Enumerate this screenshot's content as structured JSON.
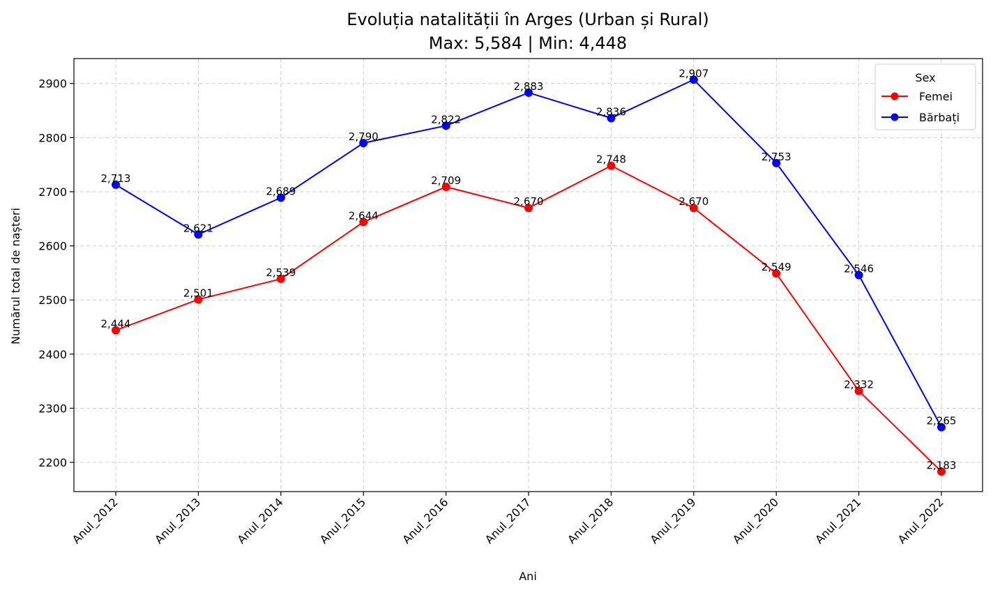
{
  "chart_data": {
    "type": "line",
    "title": "Evoluția natalității în Arges (Urban și Rural)",
    "subtitle": "Max: 5,584 | Min: 4,448",
    "xlabel": "Ani",
    "ylabel": "Numărul total de nașteri",
    "categories": [
      "Anul_2012",
      "Anul_2013",
      "Anul_2014",
      "Anul_2015",
      "Anul_2016",
      "Anul_2017",
      "Anul_2018",
      "Anul_2019",
      "Anul_2020",
      "Anul_2021",
      "Anul_2022"
    ],
    "yticks": [
      2200,
      2300,
      2400,
      2500,
      2600,
      2700,
      2800,
      2900
    ],
    "ylim": [
      2146,
      2946
    ],
    "grid": true,
    "legend": {
      "title": "Sex",
      "placement": "top-right"
    },
    "series": [
      {
        "name": "Femei",
        "color": "#ff0000",
        "values": [
          2444,
          2501,
          2539,
          2644,
          2709,
          2670,
          2748,
          2670,
          2549,
          2332,
          2183
        ],
        "labels": [
          "2,444",
          "2,501",
          "2,539",
          "2,644",
          "2,709",
          "2,670",
          "2,748",
          "2,670",
          "2,549",
          "2,332",
          "2,183"
        ]
      },
      {
        "name": "Bărbați",
        "color": "#0000ff",
        "values": [
          2713,
          2621,
          2689,
          2790,
          2822,
          2883,
          2836,
          2907,
          2753,
          2546,
          2265
        ],
        "labels": [
          "2,713",
          "2,621",
          "2,689",
          "2,790",
          "2,822",
          "2,883",
          "2,836",
          "2,907",
          "2,753",
          "2,546",
          "2,265"
        ]
      }
    ]
  }
}
